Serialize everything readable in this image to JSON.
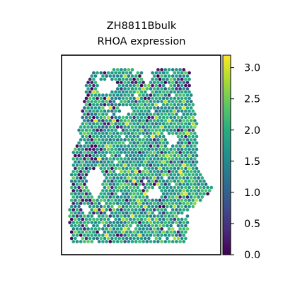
{
  "chart_data": {
    "type": "heatmap",
    "plot_kind": "spatial hexagonal spot map",
    "title_line1": "ZH8811Bbulk",
    "title_line2": "RHOA expression",
    "xlabel": "",
    "ylabel": "",
    "colormap": "viridis",
    "colorbar": {
      "vmin": 0.0,
      "vmax": 3.2,
      "ticks": [
        0.0,
        0.5,
        1.0,
        1.5,
        2.0,
        2.5,
        3.0
      ],
      "tick_labels": [
        "0.0",
        "0.5",
        "1.0",
        "1.5",
        "2.0",
        "2.5",
        "3.0"
      ]
    },
    "typical_expression": 1.8,
    "value_range_observed": [
      0.0,
      3.2
    ],
    "grid": false,
    "axes_ticks_visible": false
  },
  "colors": {
    "viridis_low": "#440154",
    "viridis_mid": "#21918c",
    "viridis_high": "#fde725"
  }
}
